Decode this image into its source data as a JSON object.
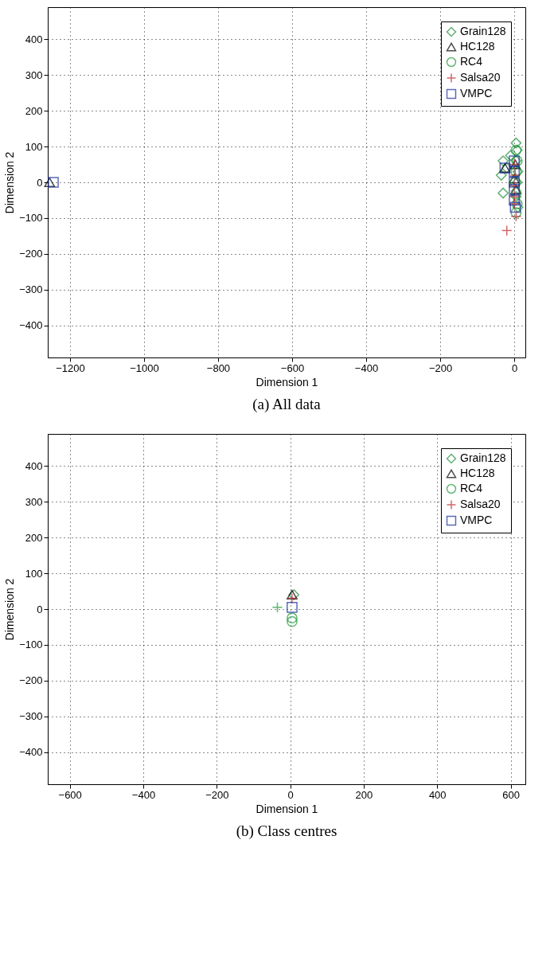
{
  "chart_data": [
    {
      "type": "scatter",
      "title": "(a) All data",
      "xlabel": "Dimension 1",
      "ylabel": "Dimension 2",
      "xlim": [
        -1260,
        30
      ],
      "ylim": [
        -490,
        490
      ],
      "xticks": [
        -1200,
        -1000,
        -800,
        -600,
        -400,
        -200,
        0
      ],
      "yticks": [
        -400,
        -300,
        -200,
        -100,
        0,
        100,
        200,
        300,
        400
      ],
      "grid": true,
      "legend": "top right",
      "series": [
        {
          "name": "Grain128",
          "color": "#1f8f3a",
          "marker": "diamond",
          "x": [
            -30,
            -35,
            -30,
            -10,
            5,
            8,
            5,
            10,
            8,
            5,
            10,
            -20
          ],
          "values": [
            60,
            20,
            -30,
            75,
            110,
            90,
            60,
            30,
            0,
            -40,
            -70,
            40
          ]
        },
        {
          "name": "HC128",
          "color": "#000000",
          "marker": "triangle",
          "x": [
            -25,
            -1255,
            0,
            5,
            3
          ],
          "values": [
            40,
            0,
            10,
            -20,
            50
          ]
        },
        {
          "name": "RC4",
          "color": "#1e9a3a",
          "marker": "circle",
          "x": [
            5,
            8,
            5,
            3,
            5,
            8,
            5
          ],
          "values": [
            90,
            60,
            30,
            0,
            -30,
            -60,
            -85
          ]
        },
        {
          "name": "Salsa20",
          "color": "#c0282d",
          "marker": "cross",
          "x": [
            -20,
            5,
            0,
            0,
            0,
            3,
            0
          ],
          "values": [
            -135,
            -95,
            -60,
            -40,
            -10,
            20,
            50
          ]
        },
        {
          "name": "VMPC",
          "color": "#1a2c9a",
          "marker": "square",
          "x": [
            -1245,
            0,
            0,
            0,
            0,
            0,
            -25,
            3
          ],
          "values": [
            0,
            60,
            30,
            0,
            -20,
            -50,
            40,
            -70
          ]
        }
      ]
    },
    {
      "type": "scatter",
      "title": "(b) Class centres",
      "xlabel": "Dimension 1",
      "ylabel": "Dimension 2",
      "xlim": [
        -660,
        640
      ],
      "ylim": [
        -490,
        490
      ],
      "xticks": [
        -600,
        -400,
        -200,
        0,
        200,
        400,
        600
      ],
      "yticks": [
        -400,
        -300,
        -200,
        -100,
        0,
        100,
        200,
        300,
        400
      ],
      "grid": true,
      "legend": "top right",
      "series": [
        {
          "name": "Grain128",
          "color": "#1f8f3a",
          "marker": "diamond",
          "x": [
            10
          ],
          "values": [
            40
          ]
        },
        {
          "name": "HC128",
          "color": "#000000",
          "marker": "triangle",
          "x": [
            5
          ],
          "values": [
            40
          ]
        },
        {
          "name": "RC4",
          "color": "#1e9a3a",
          "marker": "circle",
          "x": [
            5,
            5
          ],
          "values": [
            -25,
            -35
          ]
        },
        {
          "name": "Salsa20",
          "color": "#c0282d",
          "marker": "cross",
          "x": [
            5
          ],
          "values": [
            30
          ]
        },
        {
          "name": "VMPC",
          "color": "#1a2c9a",
          "marker": "square",
          "x": [
            5
          ],
          "values": [
            5
          ]
        },
        {
          "color": "#1e9a3a",
          "marker": "cross",
          "x": [
            -35
          ],
          "values": [
            5
          ]
        }
      ]
    }
  ]
}
